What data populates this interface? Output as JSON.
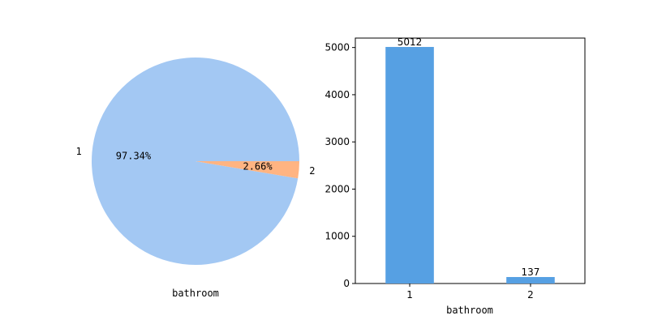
{
  "chart_data": [
    {
      "type": "pie",
      "xlabel": "bathroom",
      "labels": [
        "1",
        "2"
      ],
      "values": [
        97.34,
        2.66
      ],
      "percent_labels": [
        "97.34%",
        "2.66%"
      ],
      "colors": [
        "#a3c8f3",
        "#ffb482"
      ]
    },
    {
      "type": "bar",
      "xlabel": "bathroom",
      "categories": [
        "1",
        "2"
      ],
      "values": [
        5012,
        137
      ],
      "value_labels": [
        "5012",
        "137"
      ],
      "ylim": [
        0,
        5200
      ],
      "yticks": [
        0,
        1000,
        2000,
        3000,
        4000,
        5000
      ],
      "ytick_labels": [
        "0",
        "1000",
        "2000",
        "3000",
        "4000",
        "5000"
      ],
      "color": "#56a0e3"
    }
  ]
}
